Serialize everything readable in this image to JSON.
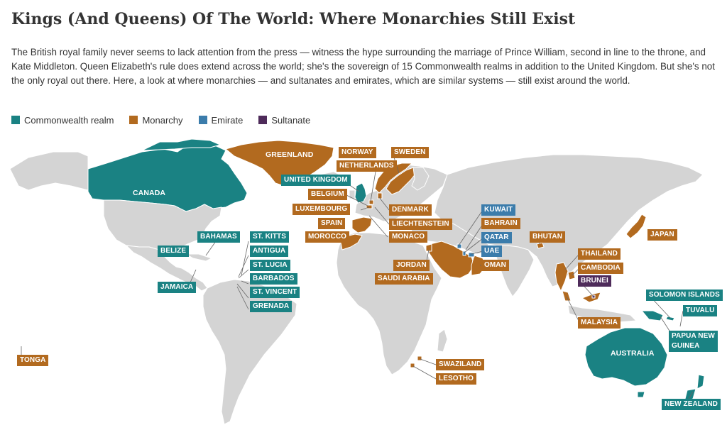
{
  "title": "Kings (And Queens) Of The World: Where Monarchies Still Exist",
  "intro": "The British royal family never seems to lack attention from the press — witness the hype surrounding the marriage of Prince William, second in line to the throne, and Kate Middleton. Queen Elizabeth's rule does extend across the world; she's the sovereign of 15 Commonwealth realms in addition to the United Kingdom. But she's not the only royal out there. Here, a look at where monarchies — and sultanates and emirates, which are similar systems — still exist around the world.",
  "colors": {
    "commonwealth": "#1a8283",
    "monarchy": "#b26a1f",
    "emirate": "#3b7cab",
    "sultanate": "#4e2b5a",
    "land": "#d4d4d4",
    "border": "#ffffff"
  },
  "legend": [
    {
      "label": "Commonwealth realm",
      "type": "commonwealth"
    },
    {
      "label": "Monarchy",
      "type": "monarchy"
    },
    {
      "label": "Emirate",
      "type": "emirate"
    },
    {
      "label": "Sultanate",
      "type": "sultanate"
    }
  ],
  "labels": {
    "greenland": "GREENLAND",
    "canada": "CANADA",
    "australia": "AUSTRALIA",
    "norway": "NORWAY",
    "netherlands": "NETHERLANDS",
    "sweden": "SWEDEN",
    "united_kingdom": "UNITED KINGDOM",
    "belgium": "BELGIUM",
    "luxembourg": "LUXEMBOURG",
    "denmark": "DENMARK",
    "spain": "SPAIN",
    "liechtenstein": "LIECHTENSTEIN",
    "morocco": "MOROCCO",
    "monaco": "MONACO",
    "kuwait": "KUWAIT",
    "bahrain": "BAHRAIN",
    "qatar": "QATAR",
    "uae": "UAE",
    "oman": "OMAN",
    "jordan": "JORDAN",
    "saudi_arabia": "SAUDI ARABIA",
    "bhutan": "BHUTAN",
    "japan": "JAPAN",
    "thailand": "THAILAND",
    "cambodia": "CAMBODIA",
    "brunei": "BRUNEI",
    "malaysia": "MALAYSIA",
    "bahamas": "BAHAMAS",
    "belize": "BELIZE",
    "jamaica": "JAMAICA",
    "st_kitts": "ST. KITTS",
    "antigua": "ANTIGUA",
    "st_lucia": "ST. LUCIA",
    "barbados": "BARBADOS",
    "st_vincent": "ST. VINCENT",
    "grenada": "GRENADA",
    "solomon_islands": "SOLOMON ISLANDS",
    "tuvalu": "TUVALU",
    "papua_new_guinea_1": "PAPUA NEW",
    "papua_new_guinea_2": "GUINEA",
    "new_zealand": "NEW ZEALAND",
    "tonga": "TONGA",
    "swaziland": "SWAZILAND",
    "lesotho": "LESOTHO"
  }
}
